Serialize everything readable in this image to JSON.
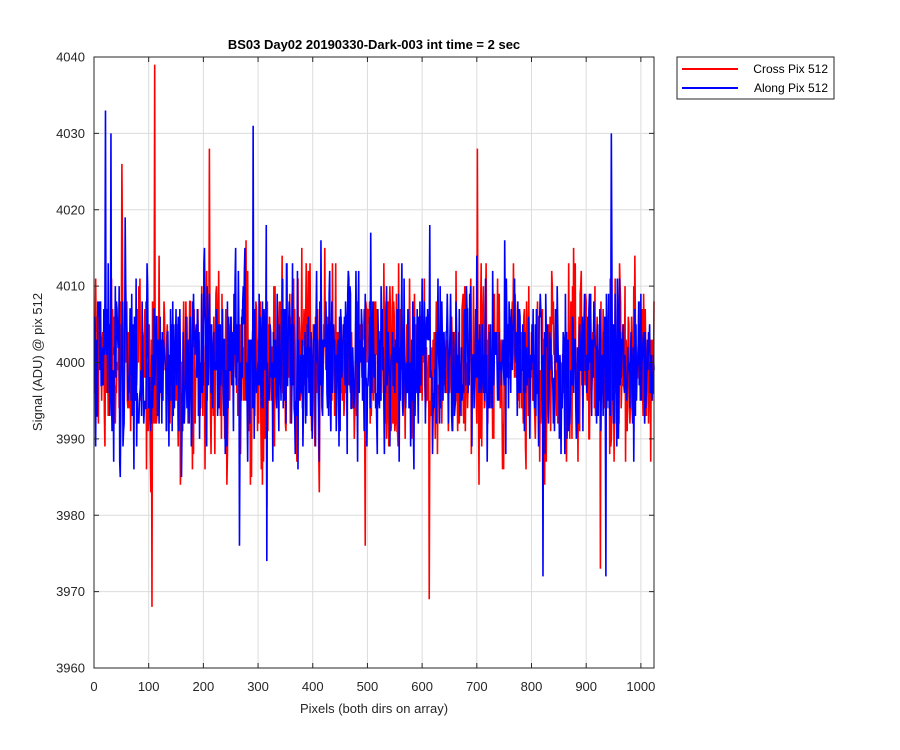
{
  "chart_data": {
    "type": "line",
    "title": "BS03 Day02 20190330-Dark-003 int time = 2 sec",
    "xlabel": "Pixels (both dirs on array)",
    "ylabel": "Signal (ADU) @ pix 512",
    "xlim": [
      0,
      1024
    ],
    "ylim": [
      3960,
      4040
    ],
    "xticks": [
      0,
      100,
      200,
      300,
      400,
      500,
      600,
      700,
      800,
      900,
      1000
    ],
    "yticks": [
      3960,
      3970,
      3980,
      3990,
      4000,
      4010,
      4020,
      4030,
      4040
    ],
    "grid": true,
    "legend_position": "outside-top-right",
    "series": [
      {
        "name": "Cross Pix 512",
        "color": "#ff0000",
        "sample_count": 1024,
        "baseline": 4000,
        "noise_sd": 6,
        "features": [
          {
            "x": 110,
            "y": 4039
          },
          {
            "x": 105,
            "y": 3968
          },
          {
            "x": 612,
            "y": 3969
          },
          {
            "x": 50,
            "y": 4026
          },
          {
            "x": 210,
            "y": 4028
          },
          {
            "x": 700,
            "y": 4028
          },
          {
            "x": 495,
            "y": 3976
          },
          {
            "x": 925,
            "y": 3973
          }
        ]
      },
      {
        "name": "Along Pix 512",
        "color": "#0000ff",
        "sample_count": 1024,
        "baseline": 4000,
        "noise_sd": 6,
        "features": [
          {
            "x": 20,
            "y": 4033
          },
          {
            "x": 30,
            "y": 4030
          },
          {
            "x": 290,
            "y": 4031
          },
          {
            "x": 945,
            "y": 4030
          },
          {
            "x": 315,
            "y": 3974
          },
          {
            "x": 265,
            "y": 3976
          },
          {
            "x": 820,
            "y": 3972
          },
          {
            "x": 935,
            "y": 3972
          }
        ]
      }
    ]
  }
}
